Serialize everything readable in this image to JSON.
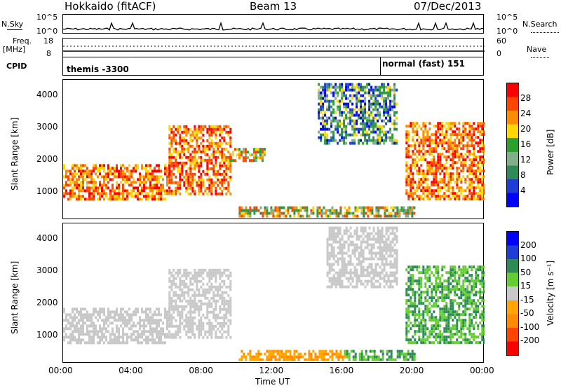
{
  "header": {
    "radar": "Hokkaido (fitACF)",
    "beam": "Beam 13",
    "date": "07/Dec/2013"
  },
  "noise_panel": {
    "left_label": "N.Sky",
    "right_label": "N.Search",
    "left_ticks": [
      "10^5",
      "10^0"
    ],
    "right_ticks": [
      "10^5",
      "10^0"
    ]
  },
  "freq_panel": {
    "left_label": "Freq.",
    "left_unit": "[MHz]",
    "right_label": "Nave",
    "left_ticks": [
      "18",
      "8"
    ],
    "right_ticks": [
      "60",
      "0"
    ]
  },
  "cpid": {
    "label": "CPID",
    "segments": [
      {
        "name": "themis -3300",
        "start_hour": 0
      },
      {
        "name": "normal (fast) 151",
        "start_hour": 18
      }
    ]
  },
  "colors": {
    "power_scale": [
      "#0000ff",
      "#1e3cd6",
      "#2e8b57",
      "#7fb08a",
      "#2ca02c",
      "#ffd700",
      "#ff8c00",
      "#ff4500",
      "#ff0000"
    ],
    "velocity_scale": [
      "#ff0000",
      "#ff4500",
      "#ff8c00",
      "#ffa500",
      "#c8c8c8",
      "#66cc33",
      "#2e8b57",
      "#1e3cd6",
      "#0000ff"
    ]
  },
  "chart_data": [
    {
      "type": "heatmap",
      "name": "power",
      "ylabel": "Slant Range [km]",
      "xlabel": "Time UT",
      "xlim_hours": [
        0,
        24
      ],
      "ylim": [
        180,
        4500
      ],
      "yticks": [
        "1000",
        "2000",
        "3000",
        "4000"
      ],
      "colorbar": {
        "label": "Power [dB]",
        "ticks": [
          "4",
          "8",
          "12",
          "16",
          "20",
          "24",
          "28"
        ]
      },
      "regions": [
        {
          "t0": 0.0,
          "t1": 6.0,
          "r0": 800,
          "r1": 1900,
          "level": "high"
        },
        {
          "t0": 6.0,
          "t1": 9.5,
          "r0": 1000,
          "r1": 3100,
          "level": "high"
        },
        {
          "t0": 9.5,
          "t1": 11.5,
          "r0": 2000,
          "r1": 2400,
          "level": "mid"
        },
        {
          "t0": 10.0,
          "t1": 20.0,
          "r0": 300,
          "r1": 600,
          "level": "mid"
        },
        {
          "t0": 14.5,
          "t1": 19.0,
          "r0": 2500,
          "r1": 4400,
          "level": "low"
        },
        {
          "t0": 19.5,
          "t1": 24.0,
          "r0": 800,
          "r1": 3200,
          "level": "high"
        }
      ]
    },
    {
      "type": "heatmap",
      "name": "velocity",
      "ylabel": "Slant Range [km]",
      "xlabel": "Time UT",
      "xlim_hours": [
        0,
        24
      ],
      "ylim": [
        180,
        4500
      ],
      "yticks": [
        "1000",
        "2000",
        "3000",
        "4000"
      ],
      "colorbar": {
        "label": "Velocity [m s⁻¹]",
        "ticks": [
          "200",
          "100",
          "50",
          "15",
          "-15",
          "-50",
          "-100",
          "-200"
        ]
      },
      "regions": [
        {
          "t0": 0.0,
          "t1": 6.0,
          "r0": 800,
          "r1": 1900,
          "level": "near-zero"
        },
        {
          "t0": 6.0,
          "t1": 9.5,
          "r0": 1000,
          "r1": 3100,
          "level": "near-zero"
        },
        {
          "t0": 10.0,
          "t1": 16.0,
          "r0": 300,
          "r1": 600,
          "level": "negative"
        },
        {
          "t0": 16.0,
          "t1": 20.0,
          "r0": 300,
          "r1": 600,
          "level": "positive"
        },
        {
          "t0": 15.0,
          "t1": 19.0,
          "r0": 2500,
          "r1": 4400,
          "level": "near-zero"
        },
        {
          "t0": 19.5,
          "t1": 24.0,
          "r0": 800,
          "r1": 3200,
          "level": "positive"
        }
      ]
    }
  ],
  "xticks": [
    "00:00",
    "04:00",
    "08:00",
    "12:00",
    "16:00",
    "20:00",
    "00:00"
  ],
  "xlabel": "Time UT"
}
